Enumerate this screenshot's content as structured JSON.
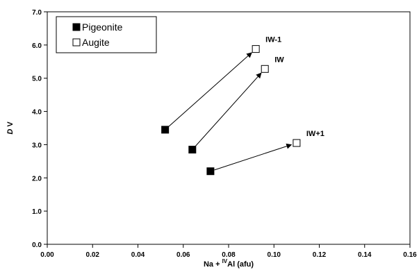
{
  "chart_data": {
    "type": "scatter",
    "xlabel": {
      "prefix": "Na + ",
      "superscript": "IV",
      "suffix": "Al (afu)"
    },
    "ylabel": {
      "italic": "D",
      "rest": " V"
    },
    "xlim": [
      0,
      0.16
    ],
    "ylim": [
      0,
      7
    ],
    "xticks": [
      "0.00",
      "0.02",
      "0.04",
      "0.06",
      "0.08",
      "0.10",
      "0.12",
      "0.14",
      "0.16"
    ],
    "yticks": [
      "0.0",
      "1.0",
      "2.0",
      "3.0",
      "4.0",
      "5.0",
      "6.0",
      "7.0"
    ],
    "legend_position": "top-left",
    "series": [
      {
        "name": "Pigeonite",
        "marker": "filled-square",
        "color": "#000000",
        "points": [
          [
            0.052,
            3.45
          ],
          [
            0.064,
            2.85
          ],
          [
            0.072,
            2.2
          ]
        ]
      },
      {
        "name": "Augite",
        "marker": "open-square",
        "color": "#000000",
        "points": [
          [
            0.092,
            5.88
          ],
          [
            0.096,
            5.28
          ],
          [
            0.11,
            3.05
          ]
        ]
      }
    ],
    "arrows": [
      {
        "from": [
          0.052,
          3.45
        ],
        "to": [
          0.092,
          5.88
        ]
      },
      {
        "from": [
          0.064,
          2.85
        ],
        "to": [
          0.096,
          5.28
        ]
      },
      {
        "from": [
          0.072,
          2.2
        ],
        "to": [
          0.11,
          3.05
        ]
      }
    ],
    "annotations": [
      {
        "text": "IW-1",
        "x": 0.092,
        "y": 5.88
      },
      {
        "text": "IW",
        "x": 0.096,
        "y": 5.28
      },
      {
        "text": "IW+1",
        "x": 0.11,
        "y": 3.05
      }
    ]
  }
}
